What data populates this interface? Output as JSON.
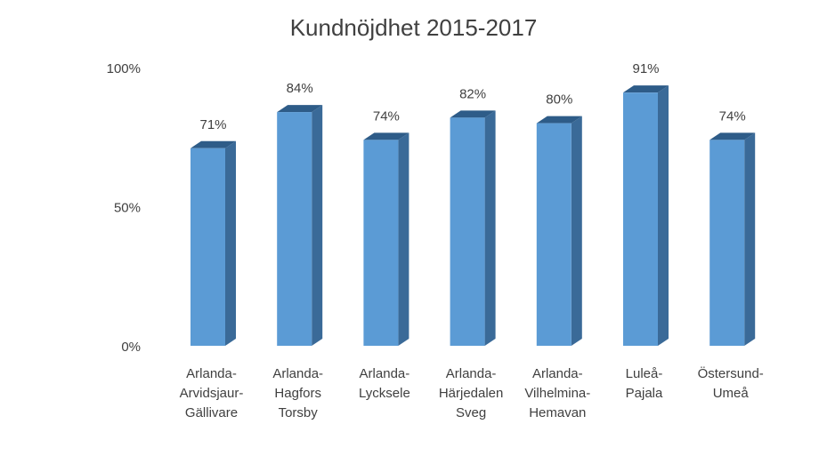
{
  "chart_data": {
    "type": "bar",
    "title": "Kundnöjdhet 2015-2017",
    "xlabel": "",
    "ylabel": "",
    "ylim": [
      0,
      100
    ],
    "yticks": [
      "0%",
      "50%",
      "100%"
    ],
    "yticks_values": [
      0,
      50,
      100
    ],
    "grid": false,
    "legend": "none",
    "style": "3d-column",
    "colors": {
      "front": "#5B9BD5",
      "side": "#3A6A98",
      "top": "#2E5C88"
    },
    "categories": [
      [
        "Arlanda-",
        "Arvidsjaur-",
        "Gällivare"
      ],
      [
        "Arlanda-",
        "Hagfors",
        "Torsby"
      ],
      [
        "Arlanda-",
        "Lycksele"
      ],
      [
        "Arlanda-",
        "Härjedalen",
        "Sveg"
      ],
      [
        "Arlanda-",
        "Vilhelmina-",
        "Hemavan"
      ],
      [
        "Luleå-",
        "Pajala"
      ],
      [
        "Östersund-",
        "Umeå"
      ]
    ],
    "values": [
      71,
      84,
      74,
      82,
      80,
      91,
      74
    ],
    "data_labels": [
      "71%",
      "84%",
      "74%",
      "82%",
      "80%",
      "91%",
      "74%"
    ]
  }
}
